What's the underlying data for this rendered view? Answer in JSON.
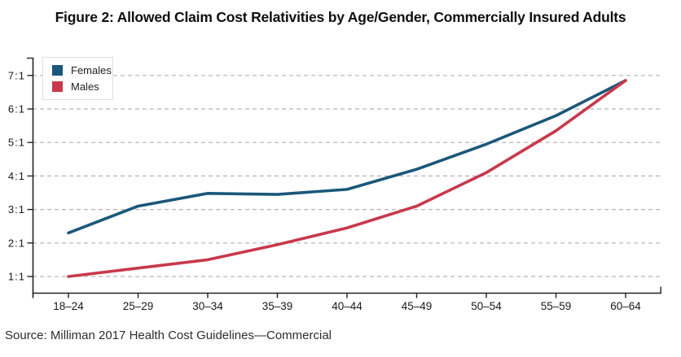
{
  "chart_data": {
    "type": "line",
    "title": "Figure 2: Allowed Claim Cost Relativities by Age/Gender, Commercially Insured Adults",
    "source": "Source: Milliman 2017 Health Cost Guidelines—Commercial",
    "categories": [
      "18–24",
      "25–29",
      "30–34",
      "35–39",
      "40–44",
      "45–49",
      "50–54",
      "55–59",
      "60–64"
    ],
    "series": [
      {
        "name": "Females",
        "color": "#1b577a",
        "values": [
          2.3,
          3.1,
          3.48,
          3.45,
          3.6,
          4.2,
          4.95,
          5.8,
          6.85
        ]
      },
      {
        "name": "Males",
        "color": "#c8394b",
        "values": [
          1.0,
          1.25,
          1.5,
          1.95,
          2.45,
          3.1,
          4.1,
          5.35,
          6.85
        ]
      }
    ],
    "y_ticks": [
      {
        "value": 1,
        "label": "1:1"
      },
      {
        "value": 2,
        "label": "2:1"
      },
      {
        "value": 3,
        "label": "3:1"
      },
      {
        "value": 4,
        "label": "4:1"
      },
      {
        "value": 5,
        "label": "5:1"
      },
      {
        "value": 6,
        "label": "6:1"
      },
      {
        "value": 7,
        "label": "7:1"
      }
    ],
    "xlabel": "",
    "ylabel": "",
    "ylim": [
      0.5,
      7.5
    ],
    "grid": "horizontal-dashed",
    "legend_position": "top-left",
    "colors": {
      "gridline": "#b3b3b3",
      "axis": "#222222",
      "tick_text": "#1a1a1a"
    }
  }
}
